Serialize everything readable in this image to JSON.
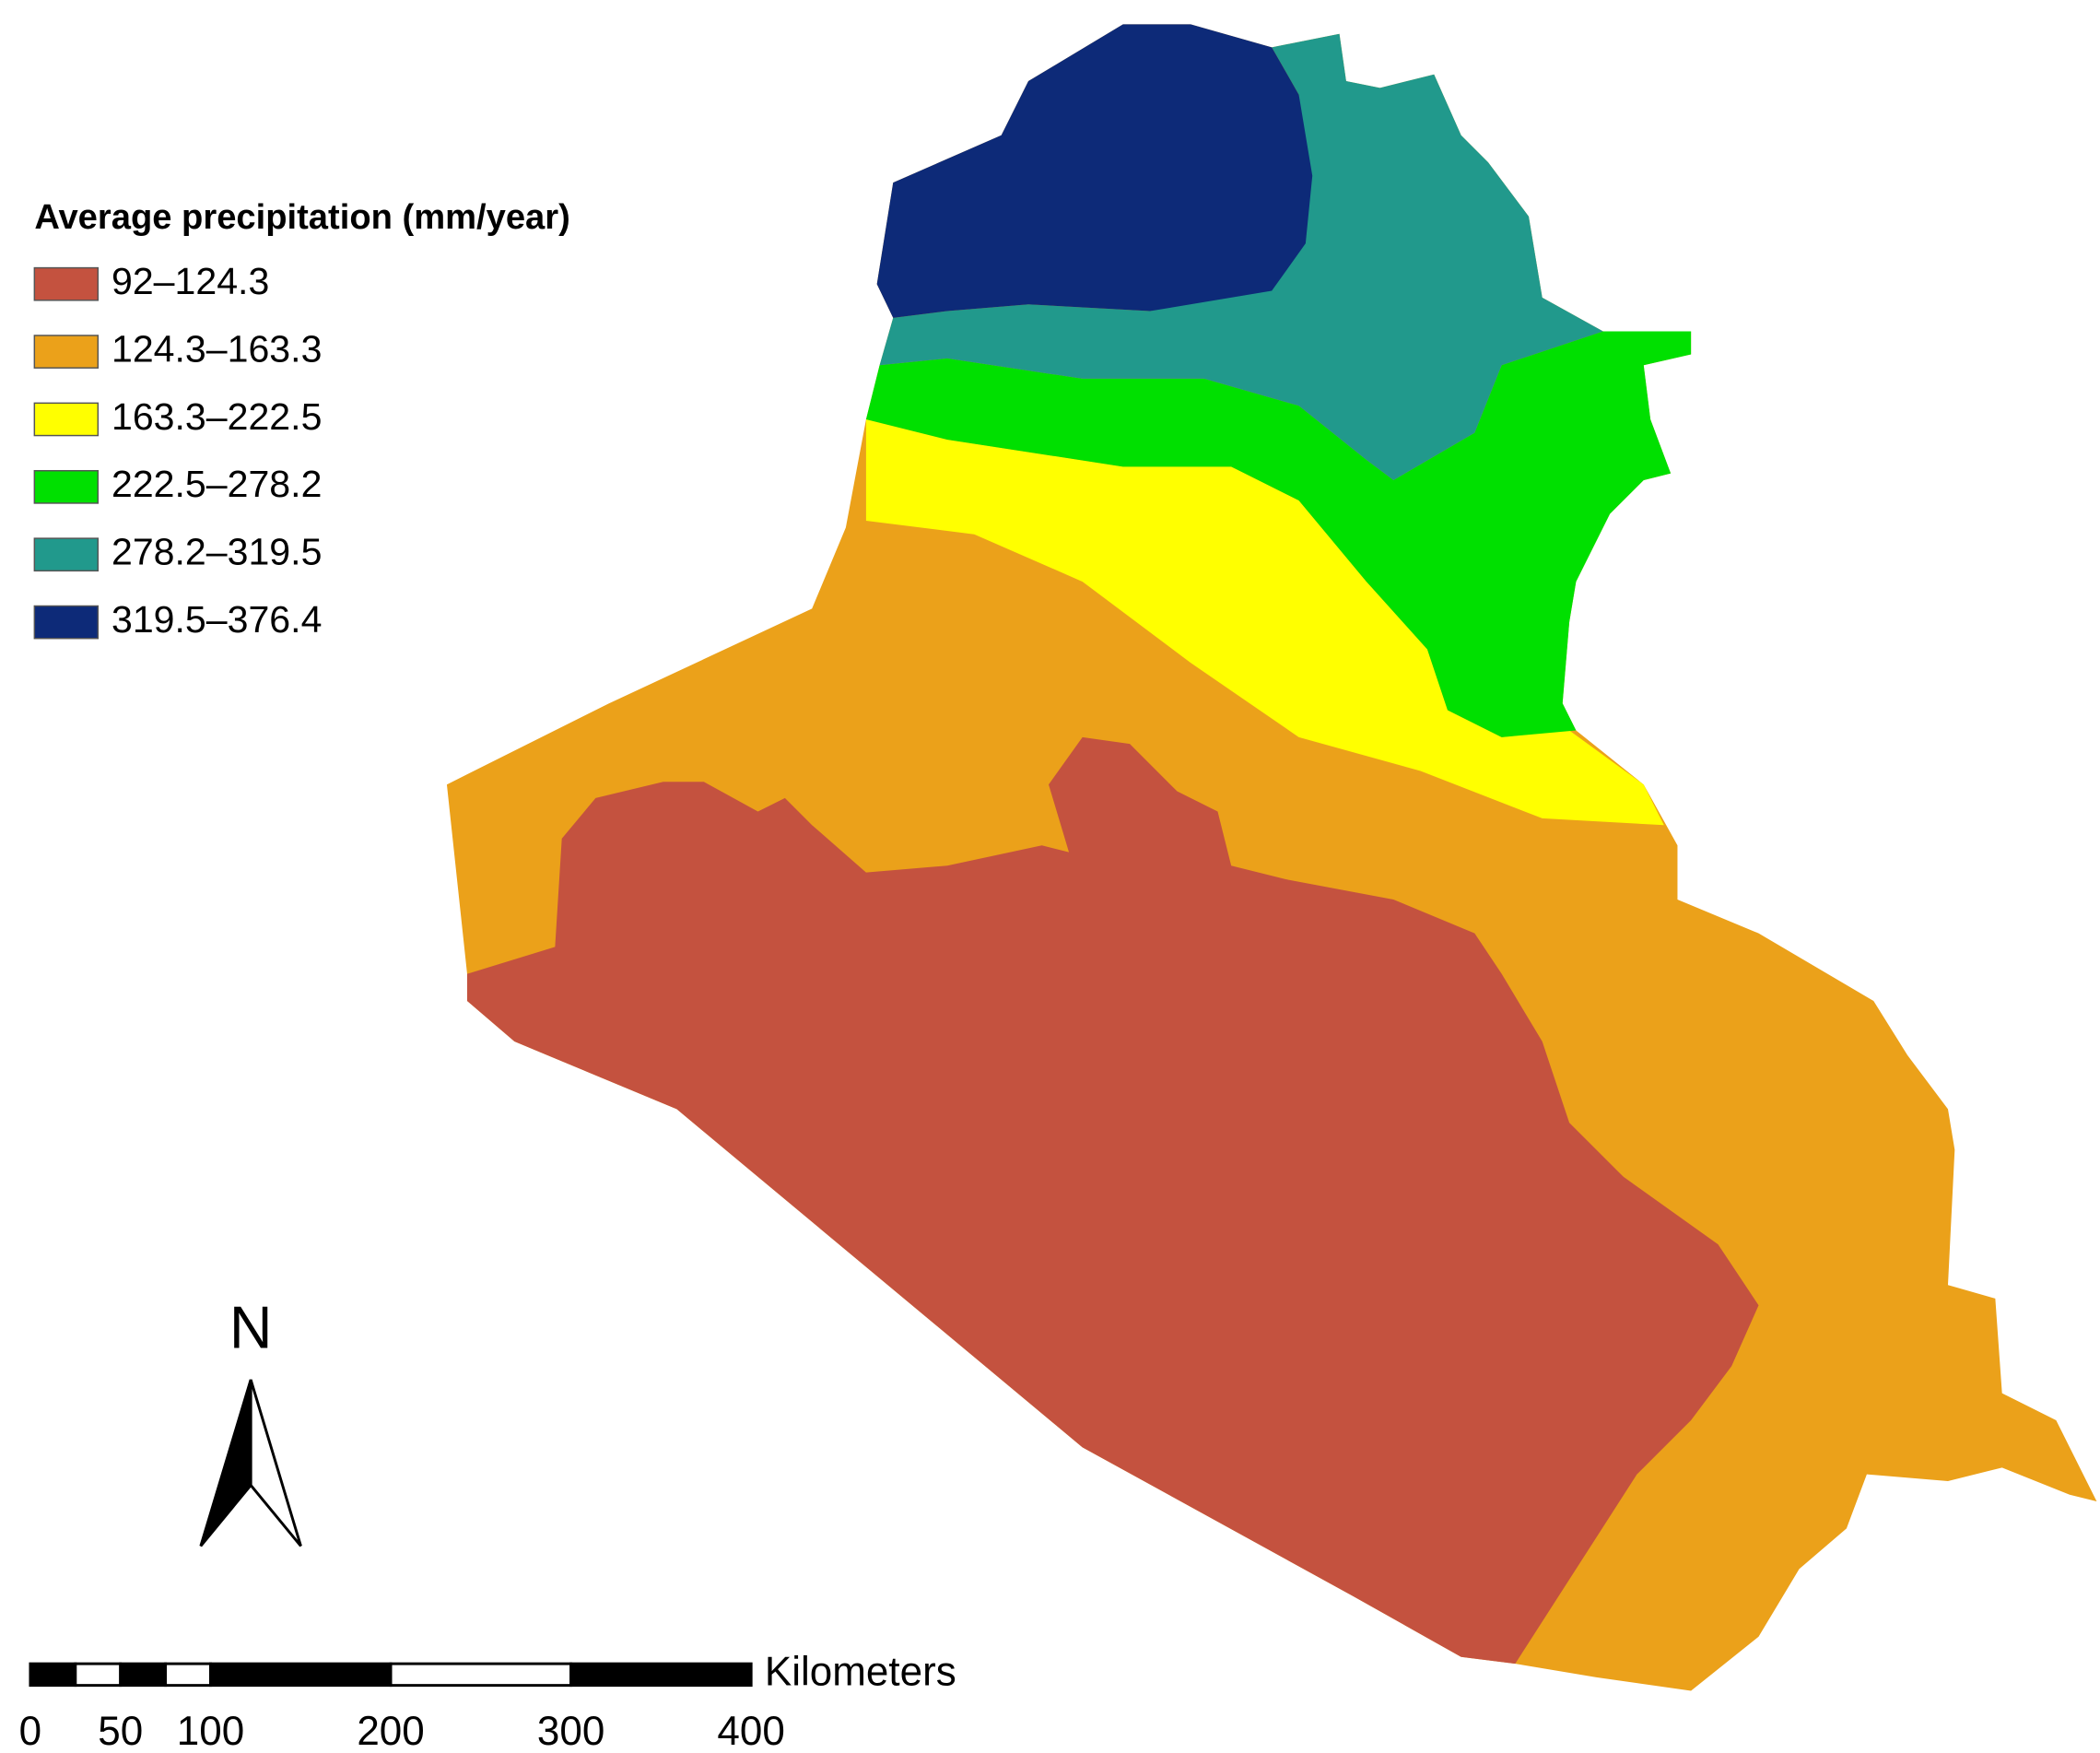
{
  "legend": {
    "title": "Average precipitation (mm/year)",
    "items": [
      {
        "label": "92–124.3",
        "color": "#c4523f"
      },
      {
        "label": "124.3–163.3",
        "color": "#eba11a"
      },
      {
        "label": "163.3–222.5",
        "color": "#ffff00"
      },
      {
        "label": "222.5–278.2",
        "color": "#00e000"
      },
      {
        "label": "278.2–319.5",
        "color": "#21998c"
      },
      {
        "label": "319.5–376.4",
        "color": "#0d2a78"
      }
    ]
  },
  "north_arrow": {
    "label": "N"
  },
  "scale_bar": {
    "unit": "Kilometers",
    "ticks": [
      0,
      50,
      100,
      200,
      300,
      400
    ]
  }
}
